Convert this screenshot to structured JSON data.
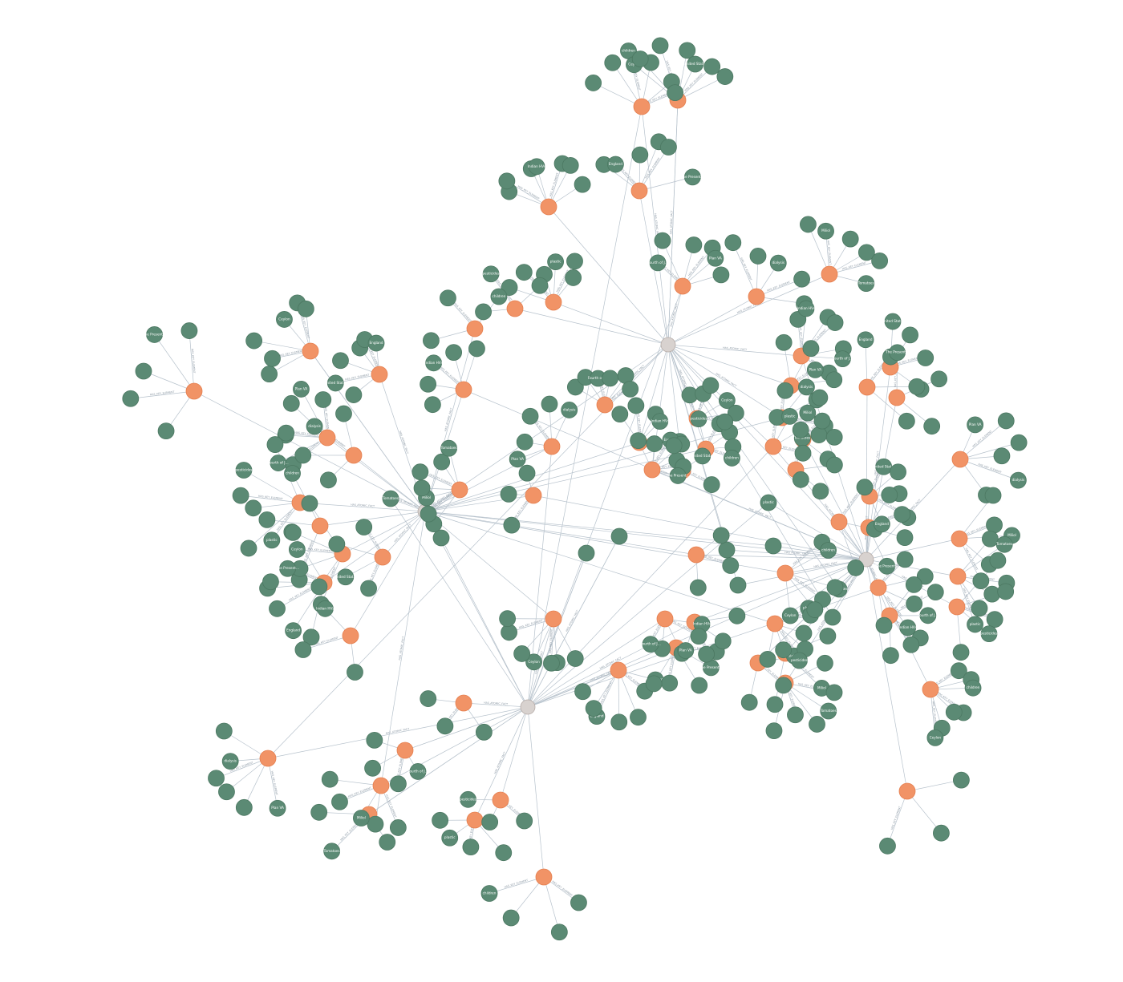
{
  "graph": {
    "node_types": {
      "hub": {
        "color": "#d8d2cf",
        "stroke": "#b5aba7"
      },
      "concept": {
        "color": "#f19366",
        "stroke": "#e57f4f"
      },
      "element": {
        "color": "#5b8a74",
        "stroke": "#4c7862"
      }
    },
    "relationships": [
      "HAS_KEY_ELEMENT",
      "HAS_ATOMIC_FACT"
    ],
    "node_label_samples": [
      "Tomatoes",
      "plastic",
      "pesticides",
      "children",
      "Ceylon",
      "United States",
      "England",
      "The Present of Juan",
      "Indian HVs",
      "Fourth of July",
      "Plan VA",
      "dialysis",
      "Miliol"
    ]
  }
}
